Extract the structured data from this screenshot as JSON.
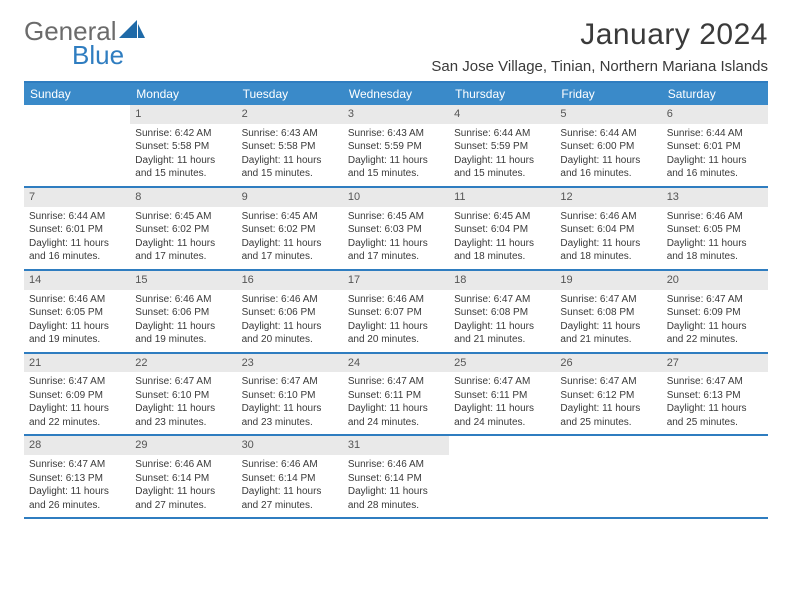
{
  "brand": {
    "general": "General",
    "blue": "Blue"
  },
  "title": "January 2024",
  "location": "San Jose Village, Tinian, Northern Mariana Islands",
  "colors": {
    "accent": "#2f7dc0",
    "header_bg": "#3a8ac9",
    "daynum_bg": "#e9e9e9",
    "text": "#3a3a3a"
  },
  "dow": [
    "Sunday",
    "Monday",
    "Tuesday",
    "Wednesday",
    "Thursday",
    "Friday",
    "Saturday"
  ],
  "weeks": [
    [
      {
        "n": "",
        "sr": "",
        "ss": "",
        "dl": ""
      },
      {
        "n": "1",
        "sr": "Sunrise: 6:42 AM",
        "ss": "Sunset: 5:58 PM",
        "dl": "Daylight: 11 hours and 15 minutes."
      },
      {
        "n": "2",
        "sr": "Sunrise: 6:43 AM",
        "ss": "Sunset: 5:58 PM",
        "dl": "Daylight: 11 hours and 15 minutes."
      },
      {
        "n": "3",
        "sr": "Sunrise: 6:43 AM",
        "ss": "Sunset: 5:59 PM",
        "dl": "Daylight: 11 hours and 15 minutes."
      },
      {
        "n": "4",
        "sr": "Sunrise: 6:44 AM",
        "ss": "Sunset: 5:59 PM",
        "dl": "Daylight: 11 hours and 15 minutes."
      },
      {
        "n": "5",
        "sr": "Sunrise: 6:44 AM",
        "ss": "Sunset: 6:00 PM",
        "dl": "Daylight: 11 hours and 16 minutes."
      },
      {
        "n": "6",
        "sr": "Sunrise: 6:44 AM",
        "ss": "Sunset: 6:01 PM",
        "dl": "Daylight: 11 hours and 16 minutes."
      }
    ],
    [
      {
        "n": "7",
        "sr": "Sunrise: 6:44 AM",
        "ss": "Sunset: 6:01 PM",
        "dl": "Daylight: 11 hours and 16 minutes."
      },
      {
        "n": "8",
        "sr": "Sunrise: 6:45 AM",
        "ss": "Sunset: 6:02 PM",
        "dl": "Daylight: 11 hours and 17 minutes."
      },
      {
        "n": "9",
        "sr": "Sunrise: 6:45 AM",
        "ss": "Sunset: 6:02 PM",
        "dl": "Daylight: 11 hours and 17 minutes."
      },
      {
        "n": "10",
        "sr": "Sunrise: 6:45 AM",
        "ss": "Sunset: 6:03 PM",
        "dl": "Daylight: 11 hours and 17 minutes."
      },
      {
        "n": "11",
        "sr": "Sunrise: 6:45 AM",
        "ss": "Sunset: 6:04 PM",
        "dl": "Daylight: 11 hours and 18 minutes."
      },
      {
        "n": "12",
        "sr": "Sunrise: 6:46 AM",
        "ss": "Sunset: 6:04 PM",
        "dl": "Daylight: 11 hours and 18 minutes."
      },
      {
        "n": "13",
        "sr": "Sunrise: 6:46 AM",
        "ss": "Sunset: 6:05 PM",
        "dl": "Daylight: 11 hours and 18 minutes."
      }
    ],
    [
      {
        "n": "14",
        "sr": "Sunrise: 6:46 AM",
        "ss": "Sunset: 6:05 PM",
        "dl": "Daylight: 11 hours and 19 minutes."
      },
      {
        "n": "15",
        "sr": "Sunrise: 6:46 AM",
        "ss": "Sunset: 6:06 PM",
        "dl": "Daylight: 11 hours and 19 minutes."
      },
      {
        "n": "16",
        "sr": "Sunrise: 6:46 AM",
        "ss": "Sunset: 6:06 PM",
        "dl": "Daylight: 11 hours and 20 minutes."
      },
      {
        "n": "17",
        "sr": "Sunrise: 6:46 AM",
        "ss": "Sunset: 6:07 PM",
        "dl": "Daylight: 11 hours and 20 minutes."
      },
      {
        "n": "18",
        "sr": "Sunrise: 6:47 AM",
        "ss": "Sunset: 6:08 PM",
        "dl": "Daylight: 11 hours and 21 minutes."
      },
      {
        "n": "19",
        "sr": "Sunrise: 6:47 AM",
        "ss": "Sunset: 6:08 PM",
        "dl": "Daylight: 11 hours and 21 minutes."
      },
      {
        "n": "20",
        "sr": "Sunrise: 6:47 AM",
        "ss": "Sunset: 6:09 PM",
        "dl": "Daylight: 11 hours and 22 minutes."
      }
    ],
    [
      {
        "n": "21",
        "sr": "Sunrise: 6:47 AM",
        "ss": "Sunset: 6:09 PM",
        "dl": "Daylight: 11 hours and 22 minutes."
      },
      {
        "n": "22",
        "sr": "Sunrise: 6:47 AM",
        "ss": "Sunset: 6:10 PM",
        "dl": "Daylight: 11 hours and 23 minutes."
      },
      {
        "n": "23",
        "sr": "Sunrise: 6:47 AM",
        "ss": "Sunset: 6:10 PM",
        "dl": "Daylight: 11 hours and 23 minutes."
      },
      {
        "n": "24",
        "sr": "Sunrise: 6:47 AM",
        "ss": "Sunset: 6:11 PM",
        "dl": "Daylight: 11 hours and 24 minutes."
      },
      {
        "n": "25",
        "sr": "Sunrise: 6:47 AM",
        "ss": "Sunset: 6:11 PM",
        "dl": "Daylight: 11 hours and 24 minutes."
      },
      {
        "n": "26",
        "sr": "Sunrise: 6:47 AM",
        "ss": "Sunset: 6:12 PM",
        "dl": "Daylight: 11 hours and 25 minutes."
      },
      {
        "n": "27",
        "sr": "Sunrise: 6:47 AM",
        "ss": "Sunset: 6:13 PM",
        "dl": "Daylight: 11 hours and 25 minutes."
      }
    ],
    [
      {
        "n": "28",
        "sr": "Sunrise: 6:47 AM",
        "ss": "Sunset: 6:13 PM",
        "dl": "Daylight: 11 hours and 26 minutes."
      },
      {
        "n": "29",
        "sr": "Sunrise: 6:46 AM",
        "ss": "Sunset: 6:14 PM",
        "dl": "Daylight: 11 hours and 27 minutes."
      },
      {
        "n": "30",
        "sr": "Sunrise: 6:46 AM",
        "ss": "Sunset: 6:14 PM",
        "dl": "Daylight: 11 hours and 27 minutes."
      },
      {
        "n": "31",
        "sr": "Sunrise: 6:46 AM",
        "ss": "Sunset: 6:14 PM",
        "dl": "Daylight: 11 hours and 28 minutes."
      },
      {
        "n": "",
        "sr": "",
        "ss": "",
        "dl": ""
      },
      {
        "n": "",
        "sr": "",
        "ss": "",
        "dl": ""
      },
      {
        "n": "",
        "sr": "",
        "ss": "",
        "dl": ""
      }
    ]
  ]
}
